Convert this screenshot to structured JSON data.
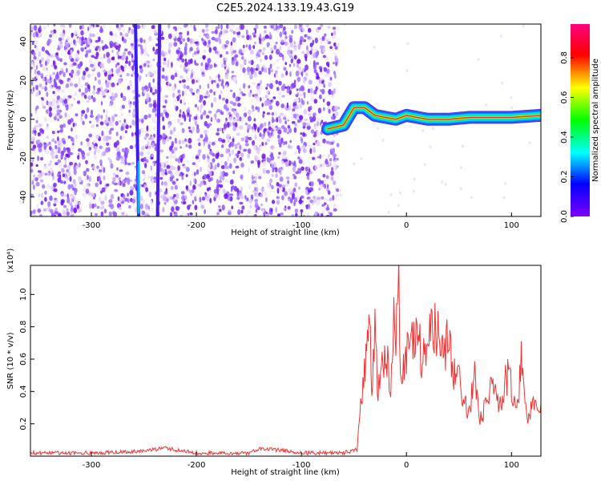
{
  "title": "C2E5.2024.133.19.43.G19",
  "chart_data": [
    {
      "type": "heatmap",
      "xlabel": "Height of straight line (km)",
      "ylabel": "Frequency (Hz)",
      "xlim": [
        -358,
        128
      ],
      "ylim": [
        -50,
        49
      ],
      "xticks": [
        -300,
        -200,
        -100,
        0,
        100
      ],
      "yticks": [
        -40,
        -20,
        0,
        20,
        40
      ],
      "colorbar": {
        "label": "Normalized spectral amplitude",
        "range": [
          0,
          0.97
        ],
        "ticks": [
          0.0,
          0.2,
          0.4,
          0.6,
          0.8
        ],
        "colormap": "rainbow (purple → blue → cyan → green → yellow → red → magenta)"
      },
      "features": {
        "noise_region_x": [
          -358,
          -65
        ],
        "artifact_streaks_x_at_bottom_top": [
          [
            -255,
            -258
          ],
          [
            -237,
            -235
          ]
        ],
        "signal_ridge": {
          "x": [
            -75,
            -60,
            -50,
            -40,
            -30,
            -20,
            -10,
            0,
            20,
            40,
            60,
            80,
            100,
            128
          ],
          "y": [
            -5,
            -3,
            6,
            6,
            2,
            1,
            0,
            2,
            0,
            0,
            1,
            1,
            1,
            2
          ]
        }
      }
    },
    {
      "type": "line",
      "xlabel": "Height of straight line (km)",
      "ylabel": "SNR (10 * v/v)",
      "y_multiplier": "(x10⁴)",
      "xlim": [
        -358,
        128
      ],
      "ylim": [
        0,
        1.18
      ],
      "xticks": [
        -300,
        -200,
        -100,
        0,
        100
      ],
      "yticks": [
        0.2,
        0.4,
        0.6,
        0.8,
        1.0
      ],
      "grid": false,
      "series": [
        {
          "color": "#f03232",
          "x": [
            -358,
            -300,
            -250,
            -230,
            -200,
            -150,
            -137,
            -100,
            -60,
            -47,
            -45,
            -40,
            -35,
            -33,
            -30,
            -27,
            -20,
            -15,
            -12,
            -10,
            -8,
            -5,
            0,
            10,
            15,
            20,
            25,
            30,
            35,
            40,
            45,
            50,
            55,
            60,
            65,
            70,
            80,
            90,
            95,
            100,
            105,
            110,
            115,
            120,
            128
          ],
          "y": [
            0.02,
            0.02,
            0.03,
            0.05,
            0.02,
            0.02,
            0.05,
            0.02,
            0.02,
            0.04,
            0.2,
            0.55,
            0.85,
            0.38,
            0.8,
            0.4,
            0.64,
            0.44,
            0.88,
            0.58,
            1.18,
            0.5,
            0.6,
            0.8,
            0.6,
            0.7,
            0.75,
            0.78,
            0.62,
            0.7,
            0.5,
            0.45,
            0.32,
            0.26,
            0.5,
            0.22,
            0.42,
            0.3,
            0.5,
            0.45,
            0.28,
            0.62,
            0.2,
            0.3,
            0.32
          ]
        }
      ]
    }
  ]
}
